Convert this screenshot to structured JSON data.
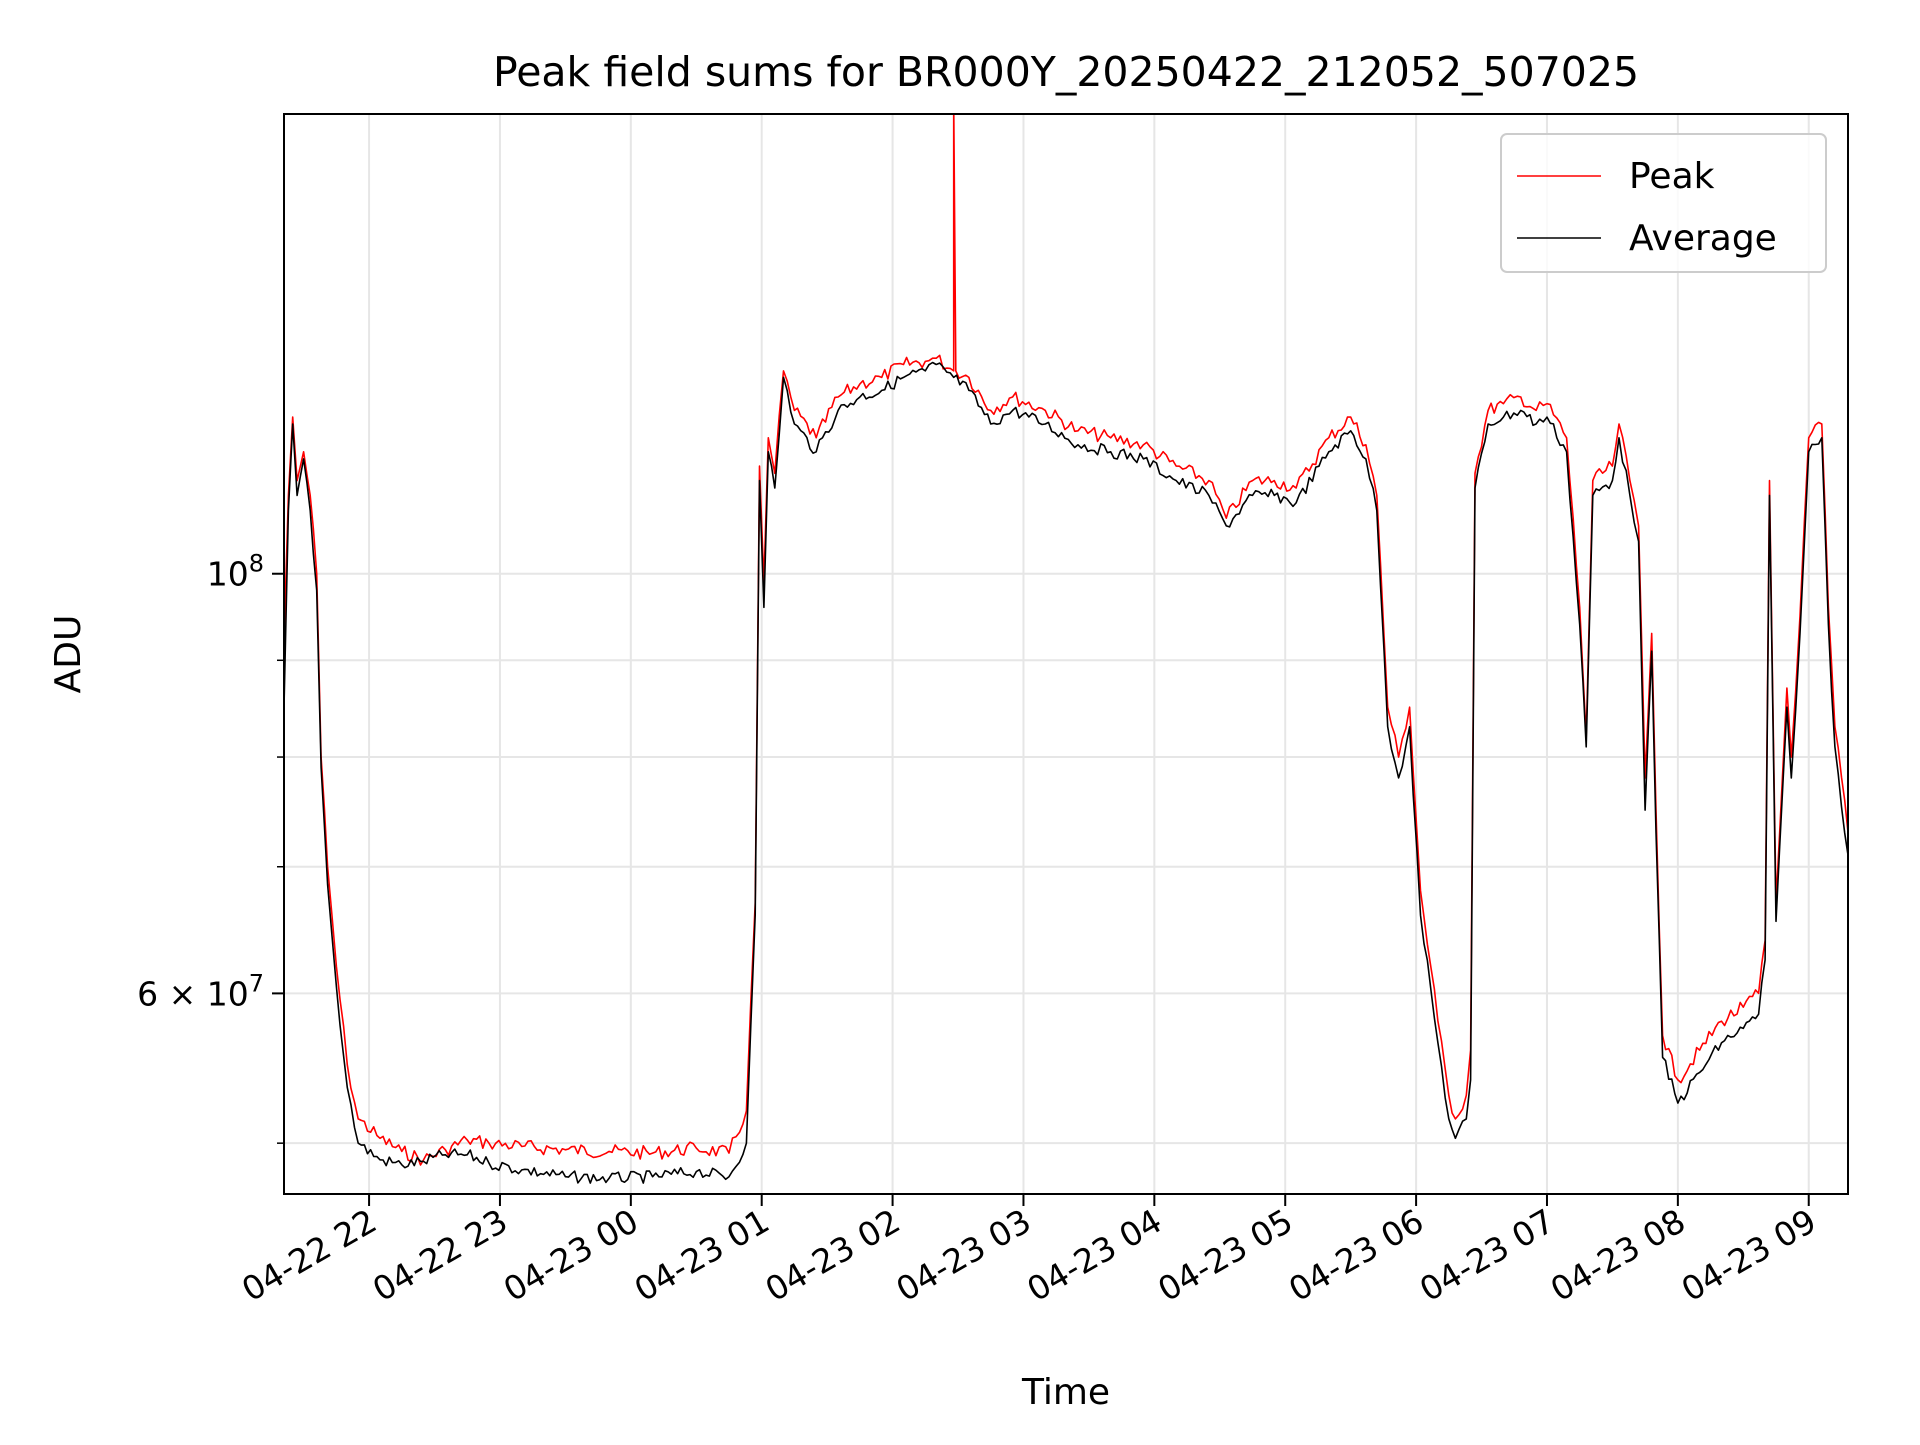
{
  "chart_data": {
    "type": "line",
    "title": "Peak field sums for BR000Y_20250422_212052_507025",
    "xlabel": "Time",
    "ylabel": "ADU",
    "yscale": "log",
    "ylim": [
      47000000,
      175000000
    ],
    "grid": true,
    "legend_position": "top-right",
    "x_ticks": [
      "04-22 22",
      "04-22 23",
      "04-23 00",
      "04-23 01",
      "04-23 02",
      "04-23 03",
      "04-23 04",
      "04-23 05",
      "04-23 06",
      "04-23 07",
      "04-23 08",
      "04-23 09"
    ],
    "xlim": [
      "2025-04-22 21:21",
      "2025-04-23 09:18"
    ],
    "y_ticks": [
      {
        "value": 100000000,
        "label": "10",
        "exponent": "8"
      },
      {
        "value": 60000000,
        "label": "6 × 10",
        "exponent": "7"
      }
    ],
    "y_minor_grid": [
      50000000,
      70000000,
      80000000,
      90000000
    ],
    "series": [
      {
        "name": "Peak",
        "color": "#ff0000",
        "points": [
          [
            "2025-04-22 21:21",
            92000000
          ],
          [
            "2025-04-22 21:23",
            110000000
          ],
          [
            "2025-04-22 21:25",
            121000000
          ],
          [
            "2025-04-22 21:27",
            112000000
          ],
          [
            "2025-04-22 21:30",
            116000000
          ],
          [
            "2025-04-22 21:33",
            110000000
          ],
          [
            "2025-04-22 21:36",
            100000000
          ],
          [
            "2025-04-22 21:38",
            80000000
          ],
          [
            "2025-04-22 21:41",
            70000000
          ],
          [
            "2025-04-22 21:45",
            62000000
          ],
          [
            "2025-04-22 21:50",
            55000000
          ],
          [
            "2025-04-22 21:55",
            51500000
          ],
          [
            "2025-04-22 22:05",
            50300000
          ],
          [
            "2025-04-22 22:15",
            49500000
          ],
          [
            "2025-04-22 22:25",
            49000000
          ],
          [
            "2025-04-22 22:35",
            49600000
          ],
          [
            "2025-04-22 22:45",
            50200000
          ],
          [
            "2025-04-22 22:55",
            50000000
          ],
          [
            "2025-04-22 23:10",
            49800000
          ],
          [
            "2025-04-22 23:30",
            49600000
          ],
          [
            "2025-04-22 23:50",
            49500000
          ],
          [
            "2025-04-23 00:10",
            49400000
          ],
          [
            "2025-04-23 00:30",
            49700000
          ],
          [
            "2025-04-23 00:45",
            49400000
          ],
          [
            "2025-04-23 00:53",
            52000000
          ],
          [
            "2025-04-23 00:57",
            67000000
          ],
          [
            "2025-04-23 00:59",
            114000000
          ],
          [
            "2025-04-23 01:01",
            99000000
          ],
          [
            "2025-04-23 01:03",
            118000000
          ],
          [
            "2025-04-23 01:06",
            113000000
          ],
          [
            "2025-04-23 01:10",
            128000000
          ],
          [
            "2025-04-23 01:15",
            122000000
          ],
          [
            "2025-04-23 01:25",
            118000000
          ],
          [
            "2025-04-23 01:35",
            124000000
          ],
          [
            "2025-04-23 01:45",
            126000000
          ],
          [
            "2025-04-23 01:55",
            127000000
          ],
          [
            "2025-04-23 02:05",
            129000000
          ],
          [
            "2025-04-23 02:15",
            129500000
          ],
          [
            "2025-04-23 02:20",
            130000000
          ],
          [
            "2025-04-23 02:28",
            128000000
          ],
          [
            "2025-04-23 02:28",
            178000000
          ],
          [
            "2025-04-23 02:29",
            128000000
          ],
          [
            "2025-04-23 02:35",
            127000000
          ],
          [
            "2025-04-23 02:45",
            122000000
          ],
          [
            "2025-04-23 02:55",
            124000000
          ],
          [
            "2025-04-23 03:10",
            122000000
          ],
          [
            "2025-04-23 03:25",
            119000000
          ],
          [
            "2025-04-23 03:40",
            118000000
          ],
          [
            "2025-04-23 03:55",
            117000000
          ],
          [
            "2025-04-23 04:10",
            114000000
          ],
          [
            "2025-04-23 04:25",
            112000000
          ],
          [
            "2025-04-23 04:33",
            107000000
          ],
          [
            "2025-04-23 04:45",
            112000000
          ],
          [
            "2025-04-23 04:55",
            112000000
          ],
          [
            "2025-04-23 05:05",
            111000000
          ],
          [
            "2025-04-23 05:20",
            118000000
          ],
          [
            "2025-04-23 05:30",
            121000000
          ],
          [
            "2025-04-23 05:37",
            117000000
          ],
          [
            "2025-04-23 05:42",
            110000000
          ],
          [
            "2025-04-23 05:47",
            85000000
          ],
          [
            "2025-04-23 05:52",
            80000000
          ],
          [
            "2025-04-23 05:57",
            85000000
          ],
          [
            "2025-04-23 06:02",
            68000000
          ],
          [
            "2025-04-23 06:10",
            58000000
          ],
          [
            "2025-04-23 06:15",
            53000000
          ],
          [
            "2025-04-23 06:18",
            51500000
          ],
          [
            "2025-04-23 06:23",
            53000000
          ],
          [
            "2025-04-23 06:25",
            56000000
          ],
          [
            "2025-04-23 06:27",
            113000000
          ],
          [
            "2025-04-23 06:33",
            122000000
          ],
          [
            "2025-04-23 06:40",
            123000000
          ],
          [
            "2025-04-23 06:48",
            124000000
          ],
          [
            "2025-04-23 06:55",
            122000000
          ],
          [
            "2025-04-23 07:00",
            123000000
          ],
          [
            "2025-04-23 07:09",
            118000000
          ],
          [
            "2025-04-23 07:15",
            96000000
          ],
          [
            "2025-04-23 07:18",
            82000000
          ],
          [
            "2025-04-23 07:21",
            112000000
          ],
          [
            "2025-04-23 07:30",
            114000000
          ],
          [
            "2025-04-23 07:33",
            120000000
          ],
          [
            "2025-04-23 07:38",
            112000000
          ],
          [
            "2025-04-23 07:42",
            106000000
          ],
          [
            "2025-04-23 07:45",
            78000000
          ],
          [
            "2025-04-23 07:48",
            93000000
          ],
          [
            "2025-04-23 07:50",
            75000000
          ],
          [
            "2025-04-23 07:53",
            57000000
          ],
          [
            "2025-04-23 08:00",
            54000000
          ],
          [
            "2025-04-23 08:10",
            56000000
          ],
          [
            "2025-04-23 08:20",
            58000000
          ],
          [
            "2025-04-23 08:30",
            59000000
          ],
          [
            "2025-04-23 08:37",
            60000000
          ],
          [
            "2025-04-23 08:40",
            64000000
          ],
          [
            "2025-04-23 08:42",
            112000000
          ],
          [
            "2025-04-23 08:45",
            67000000
          ],
          [
            "2025-04-23 08:50",
            87000000
          ],
          [
            "2025-04-23 08:52",
            80000000
          ],
          [
            "2025-04-23 08:56",
            95000000
          ],
          [
            "2025-04-23 09:00",
            118000000
          ],
          [
            "2025-04-23 09:06",
            120000000
          ],
          [
            "2025-04-23 09:09",
            96000000
          ],
          [
            "2025-04-23 09:12",
            83000000
          ],
          [
            "2025-04-23 09:18",
            73000000
          ]
        ]
      },
      {
        "name": "Average",
        "color": "#000000",
        "points": [
          [
            "2025-04-22 21:21",
            85000000
          ],
          [
            "2025-04-22 21:23",
            108000000
          ],
          [
            "2025-04-22 21:25",
            120000000
          ],
          [
            "2025-04-22 21:27",
            110000000
          ],
          [
            "2025-04-22 21:30",
            115000000
          ],
          [
            "2025-04-22 21:33",
            108000000
          ],
          [
            "2025-04-22 21:36",
            98000000
          ],
          [
            "2025-04-22 21:38",
            79000000
          ],
          [
            "2025-04-22 21:41",
            68500000
          ],
          [
            "2025-04-22 21:45",
            60500000
          ],
          [
            "2025-04-22 21:50",
            53500000
          ],
          [
            "2025-04-22 21:55",
            50000000
          ],
          [
            "2025-04-22 22:05",
            49000000
          ],
          [
            "2025-04-22 22:15",
            48700000
          ],
          [
            "2025-04-22 22:25",
            48900000
          ],
          [
            "2025-04-22 22:35",
            49300000
          ],
          [
            "2025-04-22 22:45",
            49300000
          ],
          [
            "2025-04-22 22:55",
            48800000
          ],
          [
            "2025-04-22 23:10",
            48400000
          ],
          [
            "2025-04-22 23:30",
            48000000
          ],
          [
            "2025-04-22 23:50",
            47900000
          ],
          [
            "2025-04-23 00:10",
            48000000
          ],
          [
            "2025-04-23 00:30",
            48300000
          ],
          [
            "2025-04-23 00:45",
            48000000
          ],
          [
            "2025-04-23 00:53",
            50000000
          ],
          [
            "2025-04-23 00:57",
            66000000
          ],
          [
            "2025-04-23 00:59",
            112000000
          ],
          [
            "2025-04-23 01:01",
            96000000
          ],
          [
            "2025-04-23 01:03",
            116000000
          ],
          [
            "2025-04-23 01:06",
            111000000
          ],
          [
            "2025-04-23 01:10",
            127000000
          ],
          [
            "2025-04-23 01:15",
            120000000
          ],
          [
            "2025-04-23 01:25",
            116000000
          ],
          [
            "2025-04-23 01:35",
            122000000
          ],
          [
            "2025-04-23 01:45",
            124000000
          ],
          [
            "2025-04-23 01:55",
            125000000
          ],
          [
            "2025-04-23 02:05",
            127000000
          ],
          [
            "2025-04-23 02:15",
            128000000
          ],
          [
            "2025-04-23 02:20",
            129000000
          ],
          [
            "2025-04-23 02:28",
            127000000
          ],
          [
            "2025-04-23 02:35",
            125000000
          ],
          [
            "2025-04-23 02:45",
            120000000
          ],
          [
            "2025-04-23 02:55",
            122000000
          ],
          [
            "2025-04-23 03:10",
            120000000
          ],
          [
            "2025-04-23 03:25",
            117000000
          ],
          [
            "2025-04-23 03:40",
            116000000
          ],
          [
            "2025-04-23 03:55",
            115000000
          ],
          [
            "2025-04-23 04:10",
            112000000
          ],
          [
            "2025-04-23 04:25",
            110000000
          ],
          [
            "2025-04-23 04:33",
            106000000
          ],
          [
            "2025-04-23 04:45",
            110000000
          ],
          [
            "2025-04-23 04:55",
            110000000
          ],
          [
            "2025-04-23 05:05",
            109000000
          ],
          [
            "2025-04-23 05:20",
            116000000
          ],
          [
            "2025-04-23 05:30",
            119000000
          ],
          [
            "2025-04-23 05:37",
            115000000
          ],
          [
            "2025-04-23 05:42",
            108000000
          ],
          [
            "2025-04-23 05:47",
            83000000
          ],
          [
            "2025-04-23 05:52",
            78000000
          ],
          [
            "2025-04-23 05:57",
            83000000
          ],
          [
            "2025-04-23 06:02",
            66000000
          ],
          [
            "2025-04-23 06:10",
            56500000
          ],
          [
            "2025-04-23 06:15",
            51500000
          ],
          [
            "2025-04-23 06:18",
            50300000
          ],
          [
            "2025-04-23 06:23",
            51500000
          ],
          [
            "2025-04-23 06:25",
            54000000
          ],
          [
            "2025-04-23 06:27",
            111000000
          ],
          [
            "2025-04-23 06:33",
            120000000
          ],
          [
            "2025-04-23 06:40",
            121000000
          ],
          [
            "2025-04-23 06:48",
            122000000
          ],
          [
            "2025-04-23 06:55",
            120000000
          ],
          [
            "2025-04-23 07:00",
            121000000
          ],
          [
            "2025-04-23 07:09",
            116000000
          ],
          [
            "2025-04-23 07:15",
            94000000
          ],
          [
            "2025-04-23 07:18",
            81000000
          ],
          [
            "2025-04-23 07:21",
            110000000
          ],
          [
            "2025-04-23 07:30",
            112000000
          ],
          [
            "2025-04-23 07:33",
            118000000
          ],
          [
            "2025-04-23 07:38",
            110000000
          ],
          [
            "2025-04-23 07:42",
            104000000
          ],
          [
            "2025-04-23 07:45",
            75000000
          ],
          [
            "2025-04-23 07:48",
            91000000
          ],
          [
            "2025-04-23 07:50",
            73000000
          ],
          [
            "2025-04-23 07:53",
            55500000
          ],
          [
            "2025-04-23 08:00",
            52500000
          ],
          [
            "2025-04-23 08:10",
            54500000
          ],
          [
            "2025-04-23 08:20",
            56500000
          ],
          [
            "2025-04-23 08:30",
            57500000
          ],
          [
            "2025-04-23 08:37",
            58500000
          ],
          [
            "2025-04-23 08:40",
            62500000
          ],
          [
            "2025-04-23 08:42",
            110000000
          ],
          [
            "2025-04-23 08:45",
            65500000
          ],
          [
            "2025-04-23 08:50",
            85000000
          ],
          [
            "2025-04-23 08:52",
            78000000
          ],
          [
            "2025-04-23 08:56",
            93000000
          ],
          [
            "2025-04-23 09:00",
            116000000
          ],
          [
            "2025-04-23 09:06",
            118000000
          ],
          [
            "2025-04-23 09:09",
            94000000
          ],
          [
            "2025-04-23 09:12",
            81000000
          ],
          [
            "2025-04-23 09:18",
            71000000
          ]
        ]
      }
    ]
  }
}
